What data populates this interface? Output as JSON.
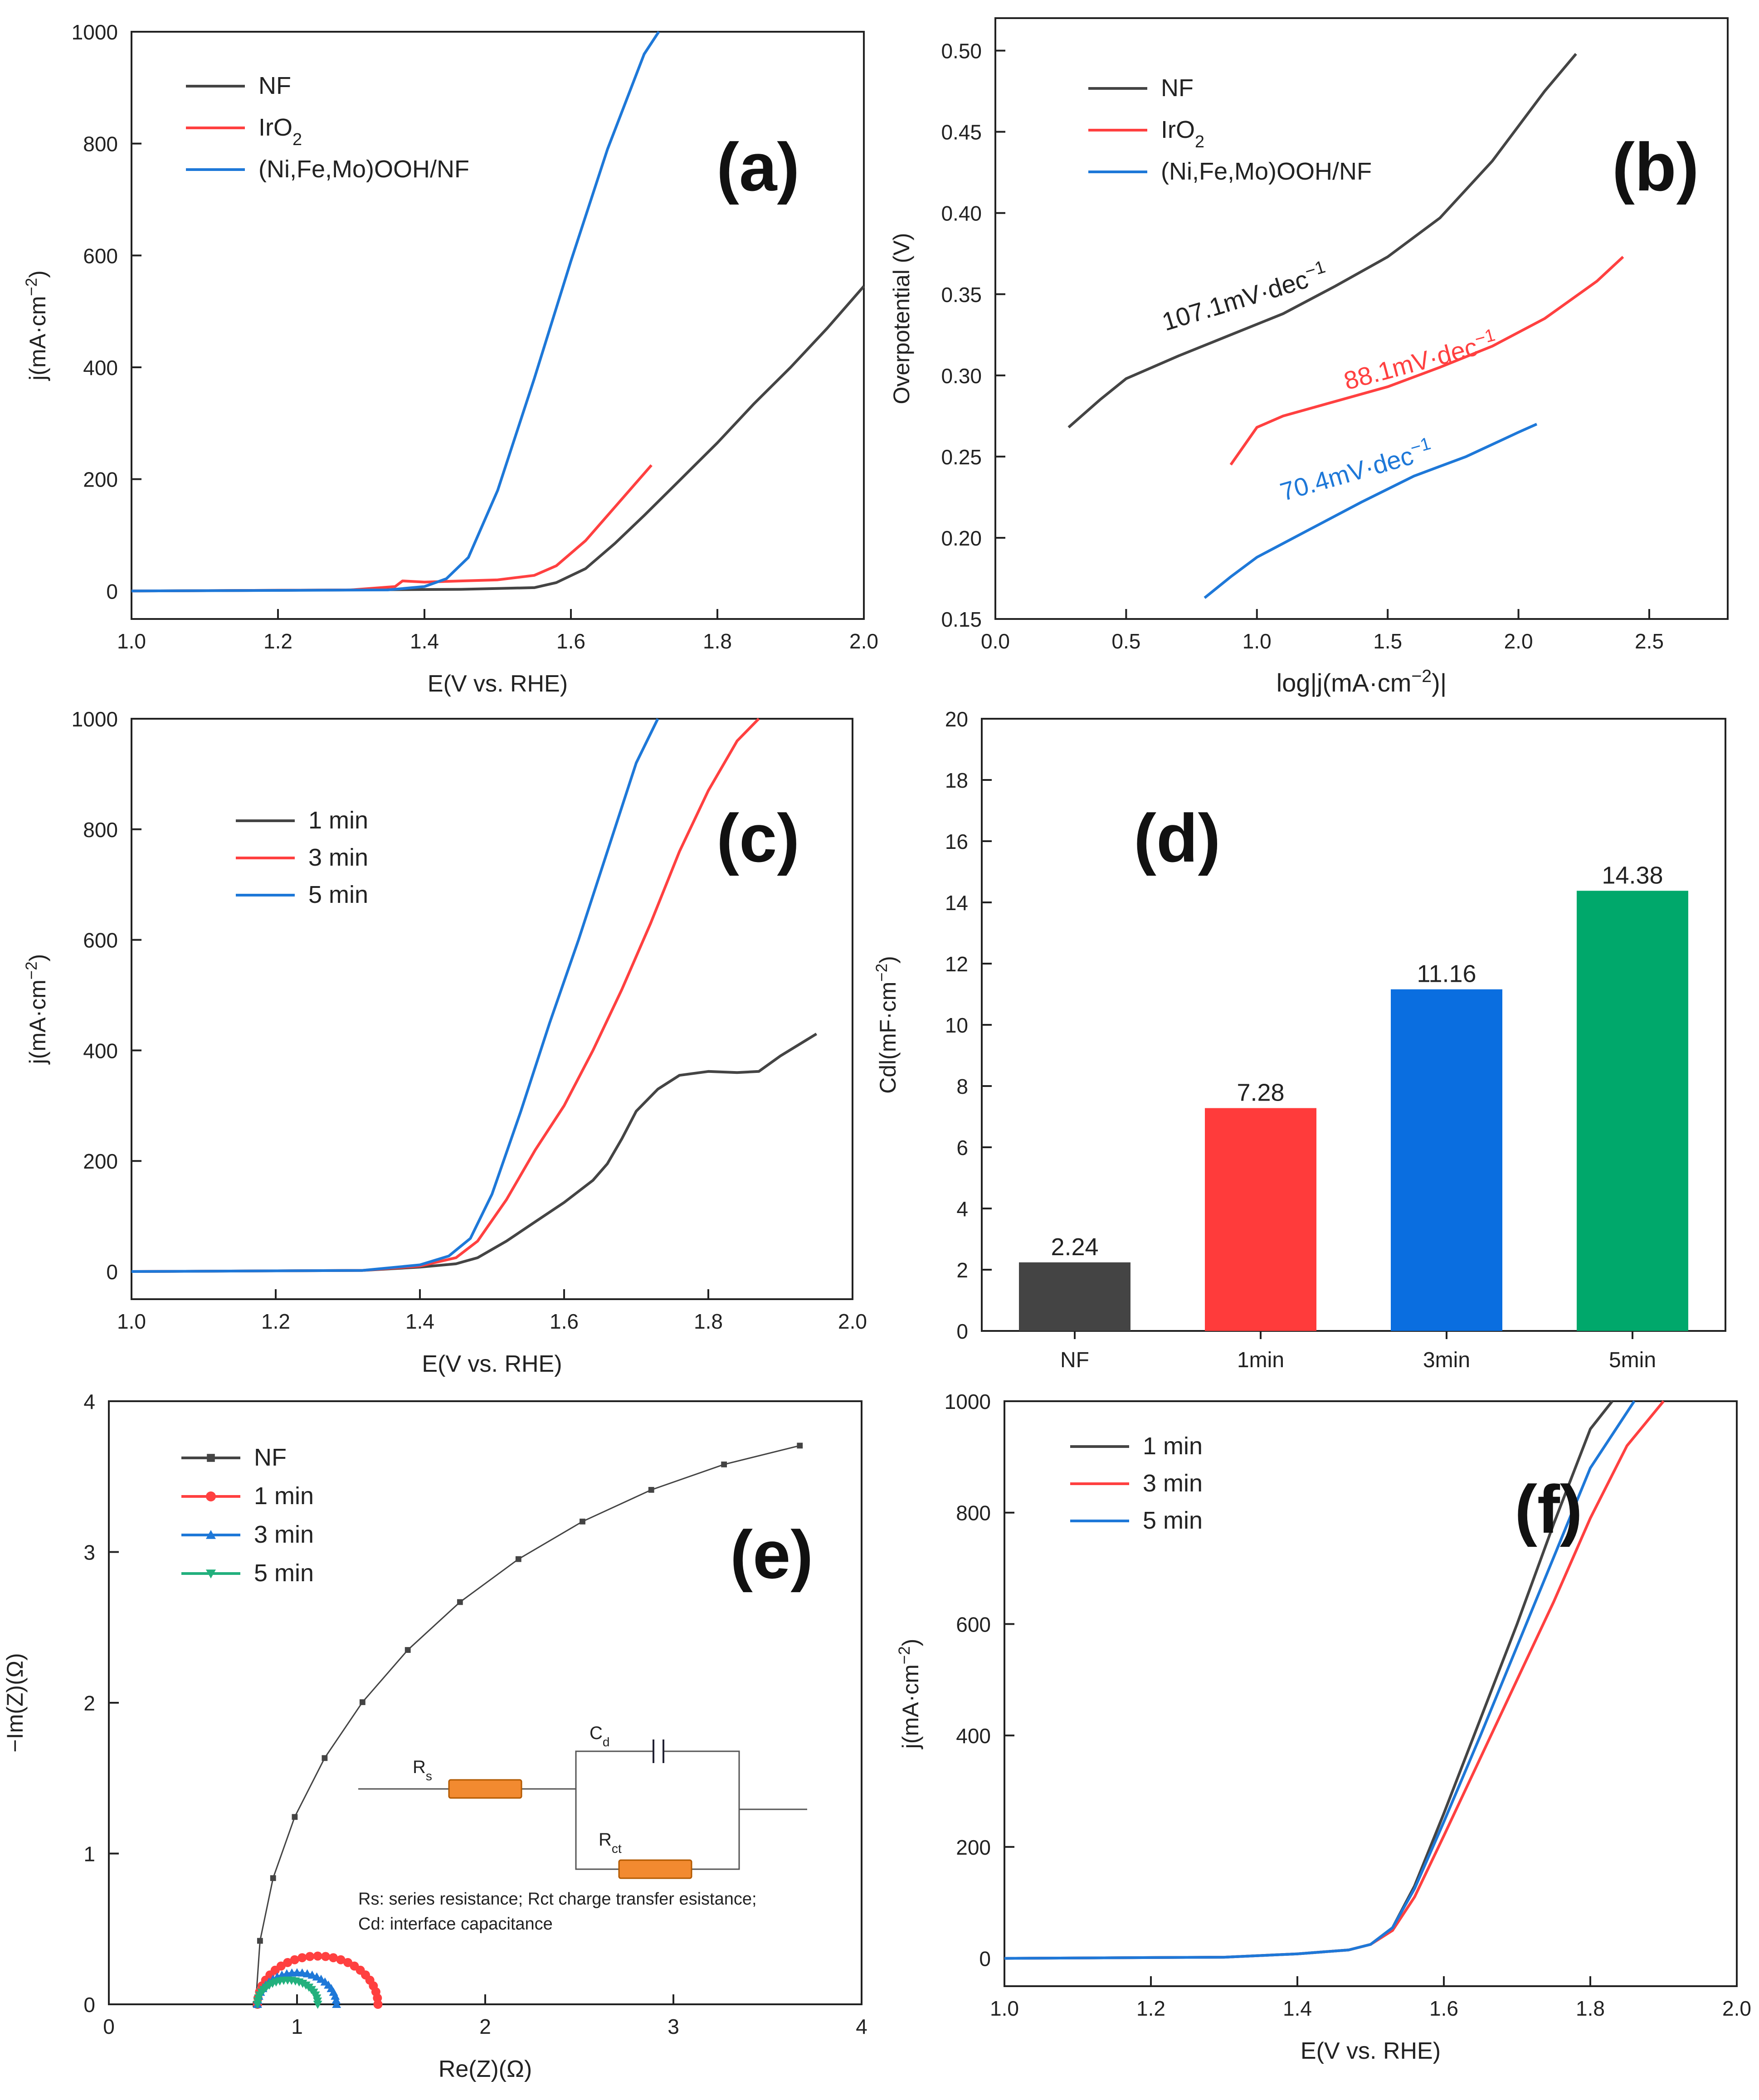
{
  "chart_data": [
    {
      "panel": "(a)",
      "type": "line",
      "xlabel": "E(V vs. RHE)",
      "ylabel": "j(mA·cm−2)",
      "xlim": [
        1.0,
        2.0
      ],
      "ylim": [
        -50,
        1000
      ],
      "xticks": [
        "1.0",
        "1.2",
        "1.4",
        "1.6",
        "1.8",
        "2.0"
      ],
      "yticks": [
        "0",
        "200",
        "400",
        "600",
        "800",
        "1000"
      ],
      "grid": false,
      "legend_position": "top-left",
      "series": [
        {
          "name": "NF",
          "color": "#444444",
          "x": [
            1.0,
            1.3,
            1.45,
            1.55,
            1.58,
            1.62,
            1.66,
            1.7,
            1.75,
            1.8,
            1.85,
            1.9,
            1.95,
            2.0
          ],
          "y": [
            0,
            2,
            3,
            6,
            15,
            40,
            85,
            135,
            200,
            265,
            335,
            400,
            470,
            545
          ]
        },
        {
          "name": "IrO2",
          "color": "#ff4040",
          "x": [
            1.0,
            1.3,
            1.36,
            1.37,
            1.4,
            1.45,
            1.5,
            1.55,
            1.58,
            1.62,
            1.66,
            1.7,
            1.71
          ],
          "y": [
            0,
            2,
            8,
            18,
            16,
            18,
            20,
            28,
            45,
            90,
            150,
            210,
            225
          ]
        },
        {
          "name": "(Ni,Fe,Mo)OOH/NF",
          "color": "#1e78d8",
          "x": [
            1.0,
            1.35,
            1.4,
            1.43,
            1.46,
            1.5,
            1.55,
            1.6,
            1.65,
            1.7,
            1.72
          ],
          "y": [
            0,
            2,
            8,
            22,
            60,
            180,
            380,
            590,
            790,
            960,
            1000
          ]
        }
      ],
      "panel_label": "(a)"
    },
    {
      "panel": "(b)",
      "type": "line",
      "xlabel": "log|j(mA·cm−2)|",
      "ylabel": "Overpotential (V)",
      "xlim": [
        0.0,
        2.8
      ],
      "ylim": [
        0.15,
        0.52
      ],
      "xticks": [
        "0.0",
        "0.5",
        "1.0",
        "1.5",
        "2.0",
        "2.5"
      ],
      "yticks": [
        "0.15",
        "0.20",
        "0.25",
        "0.30",
        "0.35",
        "0.40",
        "0.45",
        "0.50"
      ],
      "grid": false,
      "legend_position": "top-left",
      "series": [
        {
          "name": "NF",
          "color": "#444444",
          "x": [
            0.28,
            0.4,
            0.5,
            0.7,
            0.9,
            1.1,
            1.3,
            1.5,
            1.7,
            1.9,
            2.1,
            2.22
          ],
          "y": [
            0.268,
            0.285,
            0.298,
            0.312,
            0.325,
            0.338,
            0.355,
            0.373,
            0.397,
            0.432,
            0.475,
            0.498
          ]
        },
        {
          "name": "IrO2",
          "color": "#ff4040",
          "x": [
            0.9,
            1.0,
            1.1,
            1.3,
            1.5,
            1.7,
            1.9,
            2.1,
            2.3,
            2.4
          ],
          "y": [
            0.245,
            0.268,
            0.275,
            0.284,
            0.293,
            0.305,
            0.318,
            0.335,
            0.358,
            0.373
          ]
        },
        {
          "name": "(Ni,Fe,Mo)OOH/NF",
          "color": "#1e78d8",
          "x": [
            0.8,
            0.9,
            1.0,
            1.2,
            1.4,
            1.6,
            1.8,
            2.0,
            2.07
          ],
          "y": [
            0.163,
            0.176,
            0.188,
            0.205,
            0.222,
            0.238,
            0.25,
            0.265,
            0.27
          ]
        }
      ],
      "annotations": [
        {
          "text": "107.1mV·dec−1",
          "color": "#222222"
        },
        {
          "text": "88.1mV·dec−1",
          "color": "#ff4040"
        },
        {
          "text": "70.4mV·dec−1",
          "color": "#1e78d8"
        }
      ],
      "panel_label": "(b)"
    },
    {
      "panel": "(c)",
      "type": "line",
      "xlabel": "E(V vs. RHE)",
      "ylabel": "j(mA·cm−2)",
      "xlim": [
        1.0,
        2.0
      ],
      "ylim": [
        -50,
        1000
      ],
      "xticks": [
        "1.0",
        "1.2",
        "1.4",
        "1.6",
        "1.8",
        "2.0"
      ],
      "yticks": [
        "0",
        "200",
        "400",
        "600",
        "800",
        "1000"
      ],
      "grid": false,
      "legend_position": "top-left",
      "series": [
        {
          "name": "1 min",
          "color": "#444444",
          "x": [
            1.0,
            1.32,
            1.4,
            1.45,
            1.48,
            1.52,
            1.56,
            1.6,
            1.64,
            1.66,
            1.68,
            1.7,
            1.73,
            1.76,
            1.8,
            1.84,
            1.87,
            1.9,
            1.95
          ],
          "y": [
            0,
            2,
            8,
            14,
            25,
            55,
            90,
            125,
            165,
            195,
            240,
            290,
            330,
            355,
            362,
            360,
            362,
            390,
            430
          ]
        },
        {
          "name": "3 min",
          "color": "#ff4040",
          "x": [
            1.0,
            1.32,
            1.4,
            1.45,
            1.48,
            1.52,
            1.56,
            1.6,
            1.64,
            1.68,
            1.72,
            1.76,
            1.8,
            1.84,
            1.87
          ],
          "y": [
            0,
            2,
            10,
            25,
            55,
            130,
            220,
            300,
            400,
            510,
            630,
            760,
            870,
            960,
            1000
          ]
        },
        {
          "name": "5 min",
          "color": "#1e78d8",
          "x": [
            1.0,
            1.32,
            1.4,
            1.44,
            1.47,
            1.5,
            1.54,
            1.58,
            1.62,
            1.66,
            1.7,
            1.73
          ],
          "y": [
            0,
            2,
            12,
            28,
            60,
            140,
            290,
            450,
            600,
            760,
            920,
            1000
          ]
        }
      ],
      "panel_label": "(c)"
    },
    {
      "panel": "(d)",
      "type": "bar",
      "xlabel": "",
      "ylabel": "Cdl(mF·cm−2)",
      "ylim": [
        0,
        20
      ],
      "yticks": [
        "0",
        "2",
        "4",
        "6",
        "8",
        "10",
        "12",
        "14",
        "16",
        "18",
        "20"
      ],
      "categories": [
        "NF",
        "1min",
        "3min",
        "5min"
      ],
      "values": [
        2.24,
        7.28,
        11.16,
        14.38
      ],
      "labels": [
        "2.24",
        "7.28",
        "11.16",
        "14.38"
      ],
      "colors": [
        "#444444",
        "#ff3b3b",
        "#0a6ee0",
        "#00a86b"
      ],
      "grid": false,
      "panel_label": "(d)"
    },
    {
      "panel": "(e)",
      "type": "scatter",
      "xlabel": "Re(Z)(Ω)",
      "ylabel": "−Im(Z)(Ω)",
      "xlim": [
        0,
        4
      ],
      "ylim": [
        0,
        4
      ],
      "xticks": [
        "0",
        "1",
        "2",
        "3",
        "4"
      ],
      "yticks": [
        "0",
        "1",
        "2",
        "3",
        "4"
      ],
      "grid": false,
      "legend_position": "top-left",
      "series": [
        {
          "name": "NF",
          "color": "#444444",
          "marker": "square",
          "center": 4.6,
          "radius": 3.82,
          "x0": 0.78
        },
        {
          "name": "1 min",
          "color": "#ff4040",
          "marker": "circle",
          "center": 1.11,
          "radius": 0.32,
          "x0": 0.79
        },
        {
          "name": "3 min",
          "color": "#1e78d8",
          "marker": "triangle-up",
          "center": 1.0,
          "radius": 0.21,
          "x0": 0.79
        },
        {
          "name": "5 min",
          "color": "#22b07d",
          "marker": "triangle-down",
          "center": 0.95,
          "radius": 0.16,
          "x0": 0.79
        }
      ],
      "inset": {
        "labels": {
          "rs": "Rs",
          "cd": "Cd",
          "rct": "Rct"
        },
        "caption_line1": "Rs: series resistance; Rct charge transfer esistance;",
        "caption_line2": "Cd: interface capacitance"
      },
      "panel_label": "(e)"
    },
    {
      "panel": "(f)",
      "type": "line",
      "xlabel": "E(V vs. RHE)",
      "ylabel": "j(mA·cm−2)",
      "xlim": [
        1.0,
        2.0
      ],
      "ylim": [
        -50,
        1000
      ],
      "xticks": [
        "1.0",
        "1.2",
        "1.4",
        "1.6",
        "1.8",
        "2.0"
      ],
      "yticks": [
        "0",
        "200",
        "400",
        "600",
        "800",
        "1000"
      ],
      "grid": false,
      "legend_position": "top-left",
      "series": [
        {
          "name": "1 min",
          "color": "#444444",
          "x": [
            1.0,
            1.3,
            1.4,
            1.47,
            1.5,
            1.53,
            1.56,
            1.6,
            1.65,
            1.7,
            1.75,
            1.8,
            1.83
          ],
          "y": [
            0,
            2,
            8,
            15,
            25,
            55,
            130,
            260,
            430,
            600,
            780,
            950,
            1000
          ]
        },
        {
          "name": "3 min",
          "color": "#ff4040",
          "x": [
            1.0,
            1.3,
            1.4,
            1.47,
            1.5,
            1.53,
            1.56,
            1.6,
            1.65,
            1.7,
            1.75,
            1.8,
            1.85,
            1.9
          ],
          "y": [
            0,
            2,
            8,
            15,
            25,
            50,
            110,
            220,
            360,
            500,
            640,
            790,
            920,
            1000
          ]
        },
        {
          "name": "5 min",
          "color": "#1e78d8",
          "x": [
            1.0,
            1.3,
            1.4,
            1.47,
            1.5,
            1.53,
            1.56,
            1.6,
            1.65,
            1.7,
            1.75,
            1.8,
            1.86
          ],
          "y": [
            0,
            2,
            8,
            15,
            25,
            55,
            125,
            245,
            400,
            560,
            720,
            880,
            1000
          ]
        }
      ],
      "panel_label": "(f)"
    }
  ]
}
